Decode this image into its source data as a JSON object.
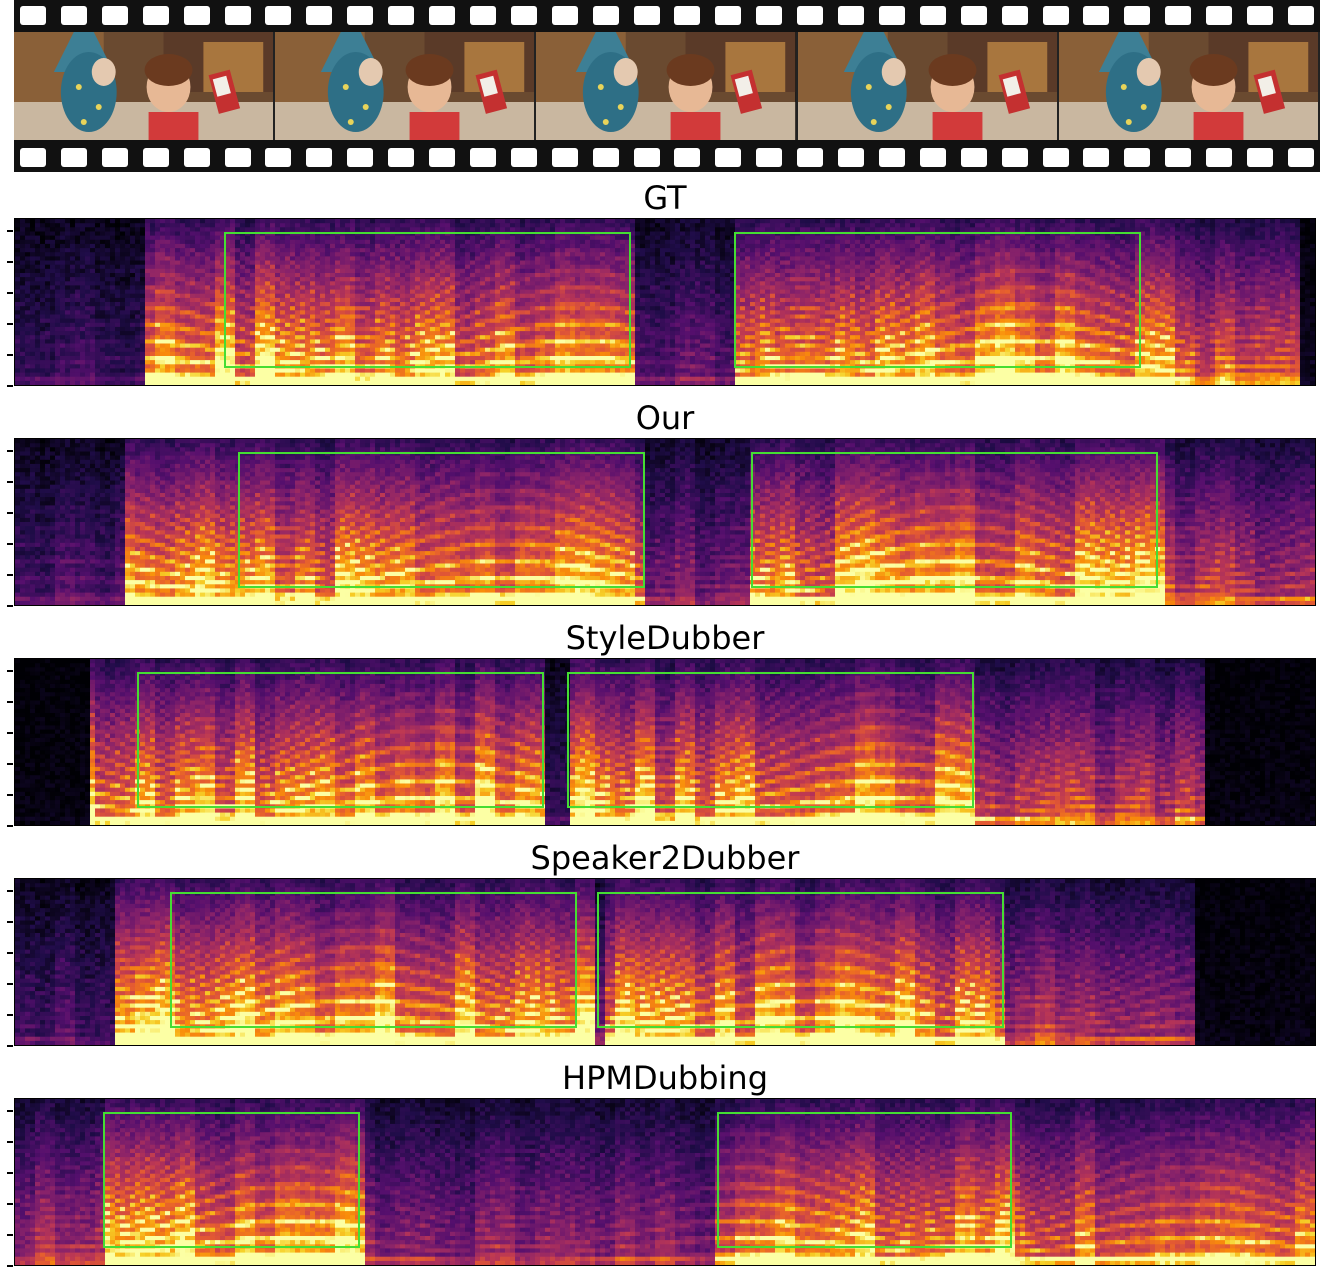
{
  "filmstrip": {
    "frame_count": 5,
    "sprocket_count": 32
  },
  "panels": [
    {
      "title": "GT"
    },
    {
      "title": "Our"
    },
    {
      "title": "StyleDubber"
    },
    {
      "title": "Speaker2Dubber"
    },
    {
      "title": "HPMDubbing"
    }
  ],
  "colors": {
    "highlight_box": "#44dd33",
    "spectrogram_low": "#000004",
    "spectrogram_mid": "#8a2e6b",
    "spectrogram_high": "#fcffa4"
  }
}
